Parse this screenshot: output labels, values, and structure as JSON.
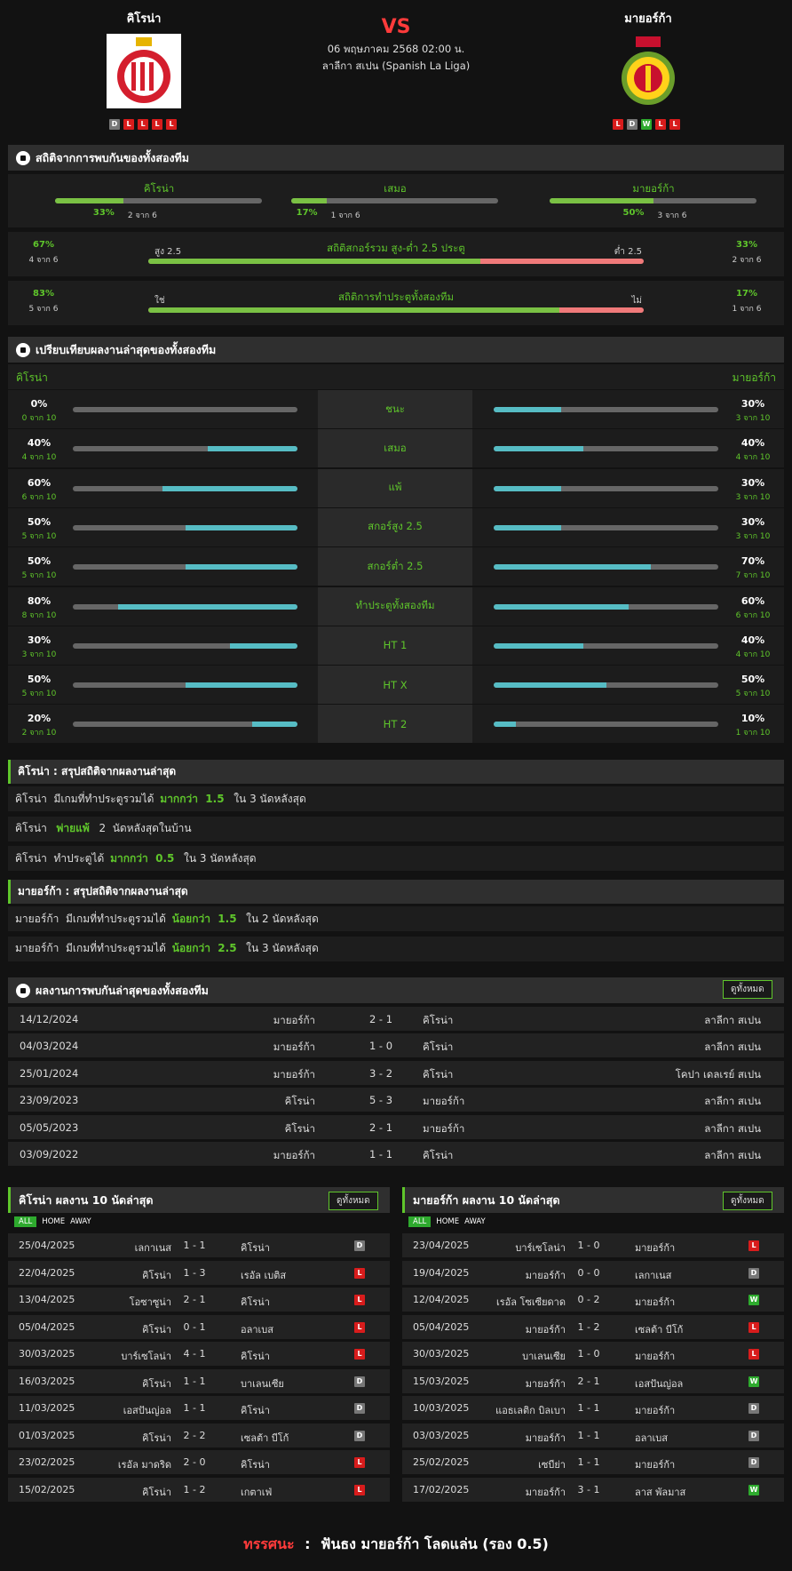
{
  "match": {
    "home": "คิโรน่า",
    "away": "มายอร์ก้า",
    "vs": "VS",
    "date": "06 พฤษภาคม 2568 02:00 น.",
    "league": "ลาลีกา สเปน (Spanish La Liga)",
    "home_form": [
      "D",
      "L",
      "L",
      "L",
      "L"
    ],
    "away_form": [
      "L",
      "D",
      "W",
      "L",
      "L"
    ]
  },
  "h2h_stats": {
    "title": "สถิติจากการพบกันของทั้งสองทีม",
    "items": [
      {
        "label": "คิโรน่า",
        "pct": "33%",
        "count": "2 จาก 6",
        "value": 0.33
      },
      {
        "label": "เสมอ",
        "pct": "17%",
        "count": "1 จาก 6",
        "value": 0.17
      },
      {
        "label": "มายอร์ก้า",
        "pct": "50%",
        "count": "3 จาก 6",
        "value": 0.5
      }
    ],
    "ou": {
      "title": "สถิติสกอร์รวม สูง-ต่ำ 2.5 ประตู",
      "left_label": "สูง 2.5",
      "right_label": "ต่ำ 2.5",
      "left_pct": "67%",
      "left_count": "4 จาก 6",
      "right_pct": "33%",
      "right_count": "2 จาก 6",
      "value": 0.67
    },
    "btts": {
      "title": "สถิติการทำประตูทั้งสองทีม",
      "left_label": "ใช่",
      "right_label": "ไม่",
      "left_pct": "83%",
      "left_count": "5 จาก 6",
      "right_pct": "17%",
      "right_count": "1 จาก 6",
      "value": 0.83
    }
  },
  "compare": {
    "title": "เปรียบเทียบผลงานล่าสุดของทั้งสองทีม",
    "home": "คิโรน่า",
    "away": "มายอร์ก้า",
    "rows": [
      {
        "label": "ชนะ",
        "hp": "0%",
        "hc": "0 จาก 10",
        "hv": 0,
        "ap": "30%",
        "ac": "3 จาก 10",
        "av": 0.3
      },
      {
        "label": "เสมอ",
        "hp": "40%",
        "hc": "4 จาก 10",
        "hv": 0.4,
        "ap": "40%",
        "ac": "4 จาก 10",
        "av": 0.4
      },
      {
        "label": "แพ้",
        "hp": "60%",
        "hc": "6 จาก 10",
        "hv": 0.6,
        "ap": "30%",
        "ac": "3 จาก 10",
        "av": 0.3
      },
      {
        "label": "สกอร์สูง 2.5",
        "hp": "50%",
        "hc": "5 จาก 10",
        "hv": 0.5,
        "ap": "30%",
        "ac": "3 จาก 10",
        "av": 0.3
      },
      {
        "label": "สกอร์ต่ำ 2.5",
        "hp": "50%",
        "hc": "5 จาก 10",
        "hv": 0.5,
        "ap": "70%",
        "ac": "7 จาก 10",
        "av": 0.7
      },
      {
        "label": "ทำประตูทั้งสองทีม",
        "hp": "80%",
        "hc": "8 จาก 10",
        "hv": 0.8,
        "ap": "60%",
        "ac": "6 จาก 10",
        "av": 0.6
      },
      {
        "label": "HT 1",
        "hp": "30%",
        "hc": "3 จาก 10",
        "hv": 0.3,
        "ap": "40%",
        "ac": "4 จาก 10",
        "av": 0.4
      },
      {
        "label": "HT X",
        "hp": "50%",
        "hc": "5 จาก 10",
        "hv": 0.5,
        "ap": "50%",
        "ac": "5 จาก 10",
        "av": 0.5
      },
      {
        "label": "HT 2",
        "hp": "20%",
        "hc": "2 จาก 10",
        "hv": 0.2,
        "ap": "10%",
        "ac": "1 จาก 10",
        "av": 0.1
      }
    ]
  },
  "summary_home": {
    "title": "คิโรน่า : สรุปสถิติจากผลงานล่าสุด",
    "rows": [
      {
        "a": "คิโรน่า  มีเกมที่ทำประตูรวมได้ ",
        "b": "มากกว่า  1.5",
        "c": "  ใน 3 นัดหลังสุด"
      },
      {
        "a": "คิโรน่า  ",
        "b": "พ่ายแพ้",
        "c": "  2  นัดหลังสุดในบ้าน"
      },
      {
        "a": "คิโรน่า  ทำประตูได้ ",
        "b": "มากกว่า  0.5",
        "c": "  ใน 3 นัดหลังสุด"
      }
    ]
  },
  "summary_away": {
    "title": "มายอร์ก้า : สรุปสถิติจากผลงานล่าสุด",
    "rows": [
      {
        "a": "มายอร์ก้า  มีเกมที่ทำประตูรวมได้ ",
        "b": "น้อยกว่า  1.5",
        "c": "  ใน 2 นัดหลังสุด"
      },
      {
        "a": "มายอร์ก้า  มีเกมที่ทำประตูรวมได้ ",
        "b": "น้อยกว่า  2.5",
        "c": "  ใน 3 นัดหลังสุด"
      }
    ]
  },
  "h2h_results": {
    "title": "ผลงานการพบกันล่าสุดของทั้งสองทีม",
    "view_all": "ดูทั้งหมด",
    "rows": [
      {
        "date": "14/12/2024",
        "home": "มายอร์ก้า",
        "score": "2 - 1",
        "away": "คิโรน่า",
        "comp": "ลาลีกา สเปน"
      },
      {
        "date": "04/03/2024",
        "home": "มายอร์ก้า",
        "score": "1 - 0",
        "away": "คิโรน่า",
        "comp": "ลาลีกา สเปน"
      },
      {
        "date": "25/01/2024",
        "home": "มายอร์ก้า",
        "score": "3 - 2",
        "away": "คิโรน่า",
        "comp": "โคปา เดลเรย์ สเปน"
      },
      {
        "date": "23/09/2023",
        "home": "คิโรน่า",
        "score": "5 - 3",
        "away": "มายอร์ก้า",
        "comp": "ลาลีกา สเปน"
      },
      {
        "date": "05/05/2023",
        "home": "คิโรน่า",
        "score": "2 - 1",
        "away": "มายอร์ก้า",
        "comp": "ลาลีกา สเปน"
      },
      {
        "date": "03/09/2022",
        "home": "มายอร์ก้า",
        "score": "1 - 1",
        "away": "คิโรน่า",
        "comp": "ลาลีกา สเปน"
      }
    ]
  },
  "last10_home": {
    "title": "คิโรน่า ผลงาน 10 นัดล่าสุด",
    "view_all": "ดูทั้งหมด",
    "tabs": [
      "ALL",
      "HOME",
      "AWAY"
    ],
    "rows": [
      {
        "date": "25/04/2025",
        "home": "เลกาเนส",
        "score": "1 - 1",
        "away": "คิโรน่า",
        "res": "D"
      },
      {
        "date": "22/04/2025",
        "home": "คิโรน่า",
        "score": "1 - 3",
        "away": "เรอัล เบติส",
        "res": "L"
      },
      {
        "date": "13/04/2025",
        "home": "โอซาซูน่า",
        "score": "2 - 1",
        "away": "คิโรน่า",
        "res": "L"
      },
      {
        "date": "05/04/2025",
        "home": "คิโรน่า",
        "score": "0 - 1",
        "away": "อลาเบส",
        "res": "L"
      },
      {
        "date": "30/03/2025",
        "home": "บาร์เซโลน่า",
        "score": "4 - 1",
        "away": "คิโรน่า",
        "res": "L"
      },
      {
        "date": "16/03/2025",
        "home": "คิโรน่า",
        "score": "1 - 1",
        "away": "บาเลนเซีย",
        "res": "D"
      },
      {
        "date": "11/03/2025",
        "home": "เอสปันญ่อล",
        "score": "1 - 1",
        "away": "คิโรน่า",
        "res": "D"
      },
      {
        "date": "01/03/2025",
        "home": "คิโรน่า",
        "score": "2 - 2",
        "away": "เซลต้า บีโก้",
        "res": "D"
      },
      {
        "date": "23/02/2025",
        "home": "เรอัล มาดริด",
        "score": "2 - 0",
        "away": "คิโรน่า",
        "res": "L"
      },
      {
        "date": "15/02/2025",
        "home": "คิโรน่า",
        "score": "1 - 2",
        "away": "เกตาเฟ่",
        "res": "L"
      }
    ]
  },
  "last10_away": {
    "title": "มายอร์ก้า ผลงาน 10 นัดล่าสุด",
    "view_all": "ดูทั้งหมด",
    "tabs": [
      "ALL",
      "HOME",
      "AWAY"
    ],
    "rows": [
      {
        "date": "23/04/2025",
        "home": "บาร์เซโลน่า",
        "score": "1 - 0",
        "away": "มายอร์ก้า",
        "res": "L"
      },
      {
        "date": "19/04/2025",
        "home": "มายอร์ก้า",
        "score": "0 - 0",
        "away": "เลกาเนส",
        "res": "D"
      },
      {
        "date": "12/04/2025",
        "home": "เรอัล โซเซียดาด",
        "score": "0 - 2",
        "away": "มายอร์ก้า",
        "res": "W"
      },
      {
        "date": "05/04/2025",
        "home": "มายอร์ก้า",
        "score": "1 - 2",
        "away": "เซลต้า บีโก้",
        "res": "L"
      },
      {
        "date": "30/03/2025",
        "home": "บาเลนเซีย",
        "score": "1 - 0",
        "away": "มายอร์ก้า",
        "res": "L"
      },
      {
        "date": "15/03/2025",
        "home": "มายอร์ก้า",
        "score": "2 - 1",
        "away": "เอสปันญ่อล",
        "res": "W"
      },
      {
        "date": "10/03/2025",
        "home": "แอธเลติก บิลเบา",
        "score": "1 - 1",
        "away": "มายอร์ก้า",
        "res": "D"
      },
      {
        "date": "03/03/2025",
        "home": "มายอร์ก้า",
        "score": "1 - 1",
        "away": "อลาเบส",
        "res": "D"
      },
      {
        "date": "25/02/2025",
        "home": "เซบีย่า",
        "score": "1 - 1",
        "away": "มายอร์ก้า",
        "res": "D"
      },
      {
        "date": "17/02/2025",
        "home": "มายอร์ก้า",
        "score": "3 - 1",
        "away": "ลาส พัลมาส",
        "res": "W"
      }
    ]
  },
  "prediction": {
    "label": "ทรรศนะ",
    "sep": ":",
    "text": "ฟันธง มายอร์ก้า โลดแล่น (รอง 0.5)"
  },
  "colors": {
    "accent_green": "#5fc62b",
    "bar_green": "#7ac144",
    "bar_teal": "#56bcc4",
    "bar_red": "#f07a7a",
    "vs_red": "#ff3b3b"
  }
}
